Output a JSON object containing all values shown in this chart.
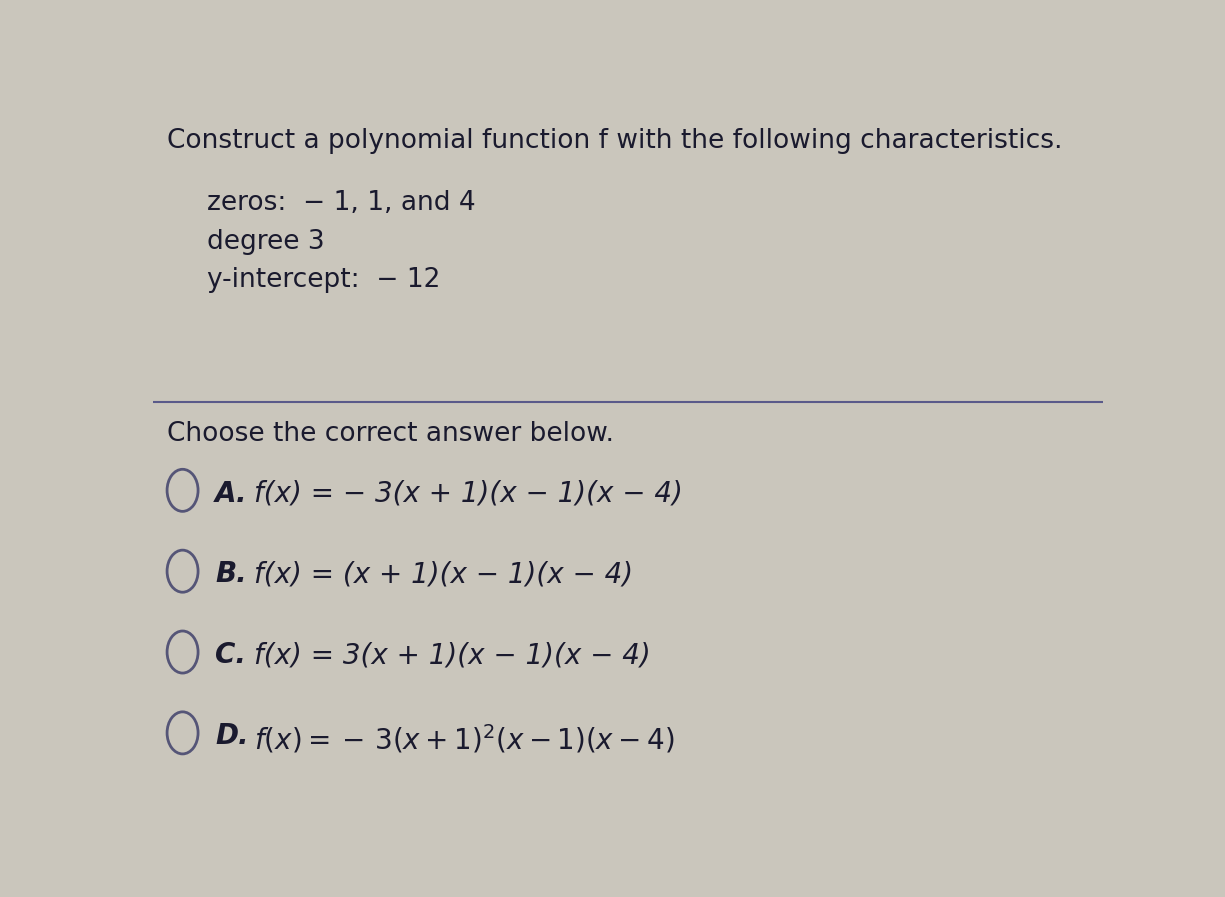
{
  "bg_color": "#cac6bc",
  "text_color": "#1a1a2e",
  "title": "Construct a polynomial function f with the following characteristics.",
  "char_lines": [
    "zeros:  − 1, 1, and 4",
    "degree 3",
    "y-intercept:  − 12"
  ],
  "prompt": "Choose the correct answer below.",
  "opt_A": "f(x) = − 3(x + 1)(x − 1)(x − 4)",
  "opt_B": "f(x) = (x + 1)(x − 1)(x − 4)",
  "opt_C": "f(x) = 3(x + 1)(x − 1)(x − 4)",
  "opt_D_pre": "f(x) = − 3(x + 1)",
  "opt_D_sup": "2",
  "opt_D_suf": "(x − 1)(x − 4)",
  "divider_color": "#5a5a8a",
  "circle_color": "#555577",
  "title_fontsize": 19,
  "body_fontsize": 19,
  "option_fontsize": 20,
  "label_fontsize": 20
}
